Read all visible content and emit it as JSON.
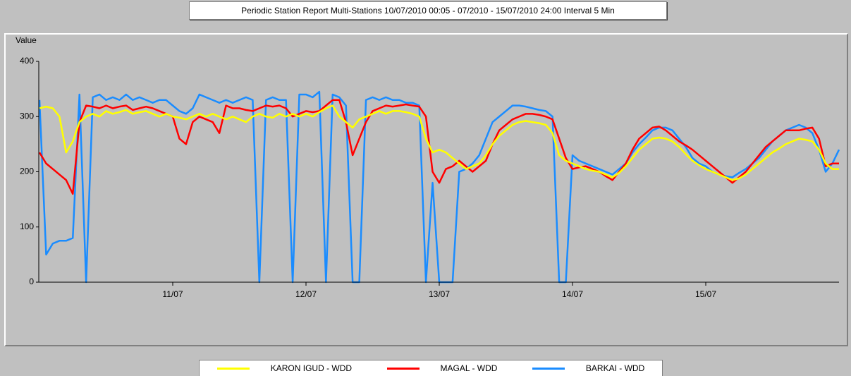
{
  "chart_data": {
    "type": "line",
    "title": "Periodic Station Report Multi-Stations 10/07/2010 00:05 - 07/2010 - 15/07/2010 24:00 Interval 5 Min",
    "y_label": "Value",
    "xlim": [
      10,
      16
    ],
    "xticks": [
      {
        "value": 11,
        "label": "11/07"
      },
      {
        "value": 12,
        "label": "12/07"
      },
      {
        "value": 13,
        "label": "13/07"
      },
      {
        "value": 14,
        "label": "14/07"
      },
      {
        "value": 15,
        "label": "15/07"
      }
    ],
    "ylim": [
      0,
      400
    ],
    "yticks": [
      0,
      100,
      200,
      300,
      400
    ],
    "x": [
      10,
      10.05,
      10.1,
      10.15,
      10.2,
      10.25,
      10.3,
      10.35,
      10.4,
      10.45,
      10.5,
      10.55,
      10.6,
      10.65,
      10.7,
      10.75,
      10.8,
      10.85,
      10.9,
      10.95,
      11,
      11.05,
      11.1,
      11.15,
      11.2,
      11.25,
      11.3,
      11.35,
      11.4,
      11.45,
      11.5,
      11.55,
      11.6,
      11.65,
      11.7,
      11.75,
      11.8,
      11.85,
      11.9,
      11.95,
      12,
      12.05,
      12.1,
      12.15,
      12.2,
      12.25,
      12.3,
      12.35,
      12.4,
      12.45,
      12.5,
      12.55,
      12.6,
      12.65,
      12.7,
      12.75,
      12.8,
      12.85,
      12.9,
      12.95,
      13,
      13.05,
      13.1,
      13.15,
      13.2,
      13.25,
      13.3,
      13.35,
      13.4,
      13.45,
      13.5,
      13.55,
      13.6,
      13.65,
      13.7,
      13.75,
      13.8,
      13.85,
      13.9,
      13.95,
      14,
      14.05,
      14.1,
      14.15,
      14.2,
      14.25,
      14.3,
      14.35,
      14.4,
      14.45,
      14.5,
      14.55,
      14.6,
      14.65,
      14.7,
      14.75,
      14.8,
      14.85,
      14.9,
      14.95,
      15,
      15.05,
      15.1,
      15.15,
      15.2,
      15.25,
      15.3,
      15.35,
      15.4,
      15.45,
      15.5,
      15.55,
      15.6,
      15.65,
      15.7,
      15.75,
      15.8,
      15.85,
      15.9,
      15.95,
      16
    ],
    "series": [
      {
        "name": "BARKAI - WDD",
        "color": "#1a8cff",
        "values": [
          330,
          50,
          70,
          75,
          75,
          80,
          340,
          0,
          335,
          340,
          330,
          335,
          330,
          340,
          330,
          335,
          330,
          325,
          330,
          330,
          320,
          310,
          305,
          315,
          340,
          335,
          330,
          325,
          330,
          325,
          330,
          335,
          330,
          0,
          330,
          335,
          330,
          330,
          0,
          340,
          340,
          335,
          345,
          0,
          340,
          335,
          320,
          0,
          0,
          330,
          335,
          330,
          335,
          330,
          330,
          325,
          325,
          320,
          0,
          180,
          0,
          0,
          0,
          200,
          205,
          215,
          230,
          260,
          290,
          300,
          310,
          320,
          320,
          318,
          315,
          312,
          310,
          300,
          0,
          0,
          230,
          220,
          215,
          210,
          205,
          200,
          195,
          205,
          215,
          235,
          250,
          262,
          275,
          280,
          280,
          275,
          260,
          245,
          225,
          215,
          210,
          200,
          195,
          192,
          190,
          198,
          205,
          215,
          225,
          240,
          255,
          265,
          275,
          280,
          285,
          280,
          270,
          240,
          200,
          215,
          240
        ]
      },
      {
        "name": "MAGAL - WDD",
        "color": "#ff0000",
        "values": [
          235,
          215,
          205,
          195,
          185,
          160,
          290,
          320,
          318,
          315,
          320,
          315,
          318,
          320,
          312,
          315,
          318,
          315,
          310,
          305,
          300,
          260,
          250,
          290,
          300,
          295,
          290,
          270,
          320,
          315,
          315,
          312,
          310,
          315,
          320,
          318,
          320,
          315,
          300,
          305,
          310,
          308,
          310,
          320,
          330,
          330,
          290,
          230,
          260,
          290,
          310,
          315,
          320,
          318,
          320,
          322,
          320,
          318,
          300,
          200,
          180,
          205,
          210,
          220,
          210,
          200,
          210,
          220,
          250,
          275,
          285,
          295,
          300,
          305,
          305,
          303,
          300,
          295,
          260,
          225,
          205,
          208,
          210,
          205,
          200,
          192,
          185,
          200,
          215,
          240,
          260,
          270,
          280,
          282,
          275,
          265,
          255,
          248,
          240,
          230,
          220,
          210,
          200,
          190,
          180,
          190,
          200,
          215,
          230,
          245,
          255,
          265,
          275,
          275,
          275,
          278,
          280,
          260,
          210,
          215,
          215
        ]
      },
      {
        "name": "KARON IGUD - WDD",
        "color": "#ffff00",
        "values": [
          315,
          318,
          315,
          300,
          235,
          255,
          290,
          300,
          305,
          300,
          310,
          305,
          308,
          312,
          305,
          308,
          310,
          305,
          300,
          305,
          300,
          298,
          295,
          300,
          305,
          300,
          305,
          300,
          295,
          300,
          295,
          290,
          300,
          305,
          300,
          298,
          305,
          300,
          305,
          300,
          305,
          300,
          308,
          315,
          320,
          300,
          290,
          280,
          295,
          300,
          305,
          310,
          305,
          310,
          310,
          308,
          305,
          300,
          260,
          235,
          240,
          235,
          225,
          215,
          205,
          210,
          215,
          230,
          250,
          265,
          275,
          285,
          290,
          292,
          290,
          288,
          285,
          270,
          230,
          220,
          215,
          210,
          205,
          202,
          200,
          195,
          190,
          198,
          210,
          225,
          240,
          250,
          260,
          262,
          260,
          255,
          245,
          232,
          220,
          212,
          205,
          200,
          195,
          190,
          185,
          188,
          195,
          205,
          215,
          225,
          235,
          242,
          250,
          255,
          260,
          258,
          255,
          240,
          215,
          205,
          205
        ]
      }
    ],
    "legend_order": [
      2,
      1,
      0
    ],
    "grid": false
  }
}
